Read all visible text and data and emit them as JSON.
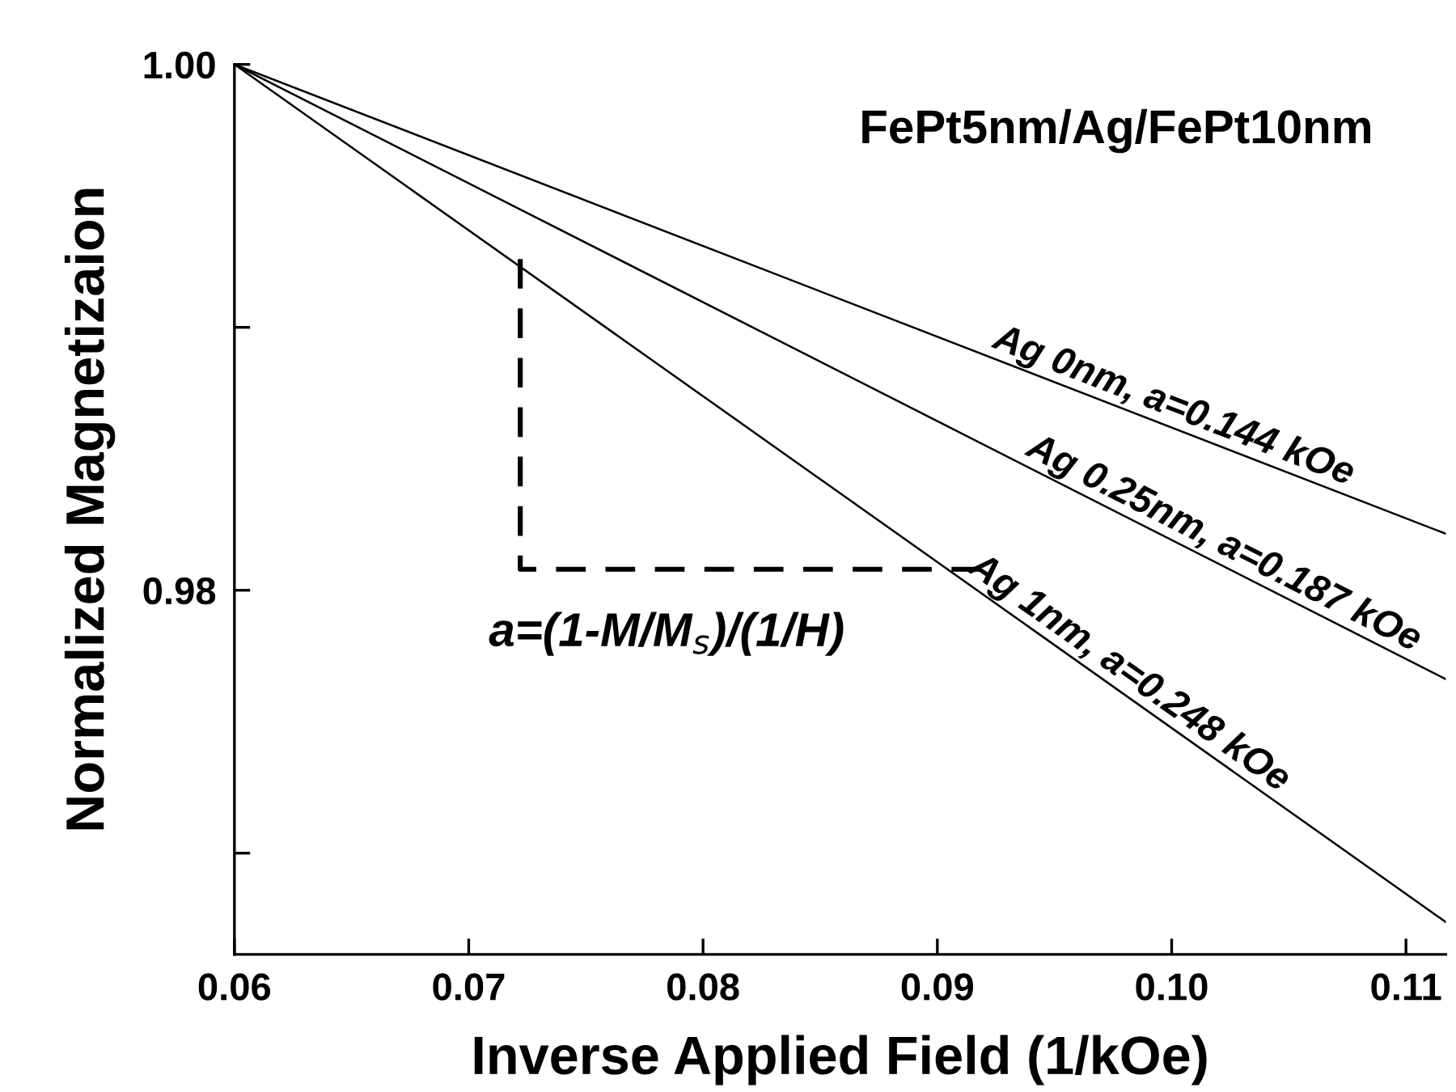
{
  "chart_data": {
    "type": "line",
    "xlabel": "Inverse Applied Field (1/kOe)",
    "ylabel": "Normalized Magnetizaion",
    "xlim": [
      0.06,
      0.1117
    ],
    "ylim": [
      0.96615,
      1.0
    ],
    "xticks": [
      0.06,
      0.07,
      0.08,
      0.09,
      {
        "value": 0.1,
        "label": "0.10"
      },
      0.11
    ],
    "yticks": [
      {
        "value": 0.97,
        "label": null
      },
      0.98,
      {
        "value": 0.99,
        "label": null
      },
      {
        "value": 1.0,
        "label": "1.00"
      }
    ],
    "series": [
      {
        "name": "Ag 0nm, a=0.144 kOe",
        "color": "#000000",
        "x": [
          0.06,
          0.1117
        ],
        "values": [
          1.0,
          0.98215
        ]
      },
      {
        "name": "Ag 0.25nm, a=0.187 kOe",
        "color": "#000000",
        "x": [
          0.06,
          0.1117
        ],
        "values": [
          1.0,
          0.97662
        ]
      },
      {
        "name": "Ag 1nm, a=0.248 kOe",
        "color": "#000000",
        "x": [
          0.06,
          0.1117
        ],
        "values": [
          1.0,
          0.96738
        ]
      },
      {
        "color": "#000000",
        "line_style": "dashed",
        "x": [
          0.0722,
          0.0722,
          0.0923
        ],
        "values": [
          0.9926,
          0.9808,
          0.9808
        ]
      }
    ],
    "annotations": [
      "FePt5nm/Ag/FePt10nm",
      "a=(1-M/M$_{s}$)/(1/H)"
    ],
    "grid": false,
    "legend": false
  }
}
